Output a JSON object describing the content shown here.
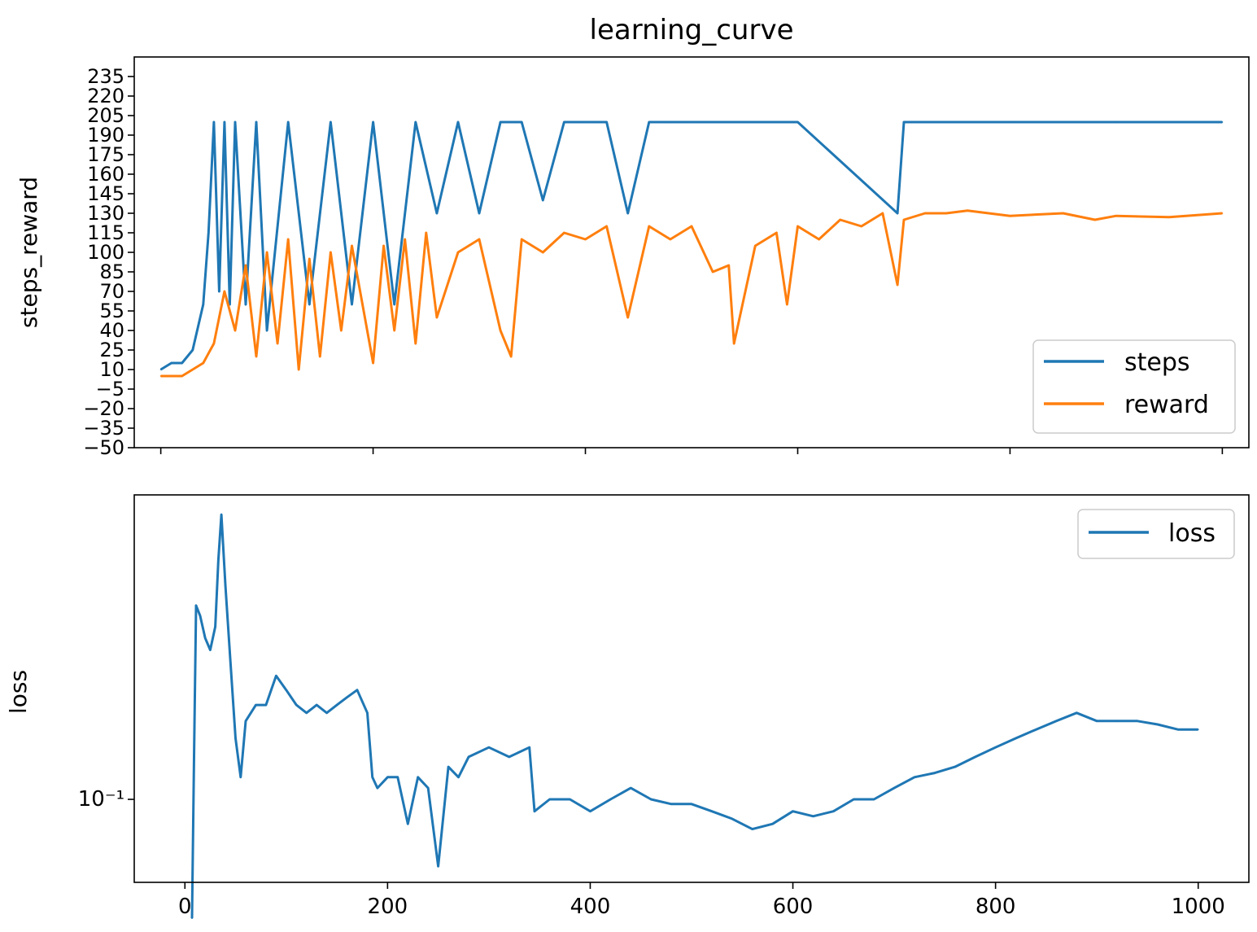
{
  "figure": {
    "title": "learning_curve"
  },
  "chart_data": [
    {
      "type": "line",
      "panel": "top",
      "ylabel": "steps_reward",
      "xlim": [
        -25,
        1025
      ],
      "ylim": [
        -50,
        250
      ],
      "xticks": [
        0,
        200,
        400,
        600,
        800,
        1000
      ],
      "yticks": [
        -50,
        -35,
        -20,
        -5,
        10,
        25,
        40,
        55,
        70,
        85,
        100,
        115,
        130,
        145,
        160,
        175,
        190,
        205,
        220,
        235
      ],
      "ytick_labels": [
        "−50",
        "−35",
        "−20",
        "−5",
        "10",
        "25",
        "40",
        "55",
        "70",
        "85",
        "100",
        "115",
        "130",
        "145",
        "160",
        "175",
        "190",
        "205",
        "220",
        "235"
      ],
      "legend_position": "lower-right",
      "series": [
        {
          "name": "steps",
          "color": "#1f77b4",
          "x": [
            0,
            10,
            20,
            30,
            40,
            45,
            50,
            55,
            60,
            65,
            70,
            80,
            90,
            100,
            120,
            140,
            160,
            180,
            200,
            220,
            240,
            260,
            280,
            300,
            320,
            340,
            360,
            380,
            400,
            420,
            440,
            460,
            480,
            500,
            600,
            694,
            700,
            800,
            900,
            1000
          ],
          "y": [
            10,
            15,
            15,
            25,
            60,
            115,
            200,
            70,
            200,
            60,
            200,
            60,
            200,
            40,
            200,
            60,
            200,
            60,
            200,
            60,
            200,
            130,
            200,
            130,
            200,
            200,
            140,
            200,
            200,
            200,
            130,
            200,
            200,
            200,
            200,
            130,
            200,
            200,
            200,
            200
          ]
        },
        {
          "name": "reward",
          "color": "#ff7f0e",
          "x": [
            0,
            20,
            40,
            50,
            60,
            70,
            80,
            90,
            100,
            110,
            120,
            130,
            140,
            150,
            160,
            170,
            180,
            200,
            210,
            220,
            230,
            240,
            250,
            260,
            280,
            300,
            320,
            330,
            340,
            360,
            380,
            400,
            420,
            440,
            460,
            480,
            500,
            520,
            535,
            540,
            560,
            580,
            590,
            600,
            620,
            640,
            660,
            680,
            694,
            700,
            720,
            740,
            760,
            800,
            850,
            880,
            900,
            950,
            1000
          ],
          "y": [
            5,
            5,
            15,
            30,
            70,
            40,
            90,
            20,
            100,
            30,
            110,
            10,
            95,
            20,
            100,
            40,
            105,
            15,
            105,
            40,
            110,
            30,
            115,
            50,
            100,
            110,
            40,
            20,
            110,
            100,
            115,
            110,
            120,
            50,
            120,
            110,
            120,
            85,
            90,
            30,
            105,
            115,
            60,
            120,
            110,
            125,
            120,
            130,
            75,
            125,
            130,
            130,
            132,
            128,
            130,
            125,
            128,
            127,
            130
          ]
        }
      ]
    },
    {
      "type": "line",
      "panel": "bottom",
      "ylabel": "loss",
      "yscale": "log",
      "xlim": [
        -50,
        1050
      ],
      "ylim": [
        0.07,
        0.37
      ],
      "xticks": [
        0,
        200,
        400,
        600,
        800,
        1000
      ],
      "xtick_labels": [
        "0",
        "200",
        "400",
        "600",
        "800",
        "1000"
      ],
      "yticks": [
        0.1
      ],
      "ytick_labels": [
        "10⁻¹"
      ],
      "legend_position": "upper-right",
      "series": [
        {
          "name": "loss",
          "color": "#1f77b4",
          "x": [
            7,
            9,
            11,
            15,
            20,
            25,
            30,
            33,
            36,
            40,
            45,
            50,
            55,
            60,
            70,
            80,
            90,
            100,
            110,
            120,
            130,
            140,
            150,
            160,
            170,
            180,
            185,
            190,
            200,
            210,
            220,
            230,
            240,
            250,
            260,
            270,
            280,
            300,
            320,
            340,
            345,
            360,
            380,
            400,
            420,
            440,
            460,
            480,
            500,
            520,
            540,
            560,
            580,
            600,
            620,
            640,
            660,
            680,
            700,
            720,
            740,
            760,
            780,
            800,
            820,
            840,
            860,
            880,
            900,
            920,
            940,
            960,
            980,
            1000
          ],
          "y": [
            0.06,
            0.12,
            0.23,
            0.22,
            0.2,
            0.19,
            0.21,
            0.28,
            0.34,
            0.25,
            0.18,
            0.13,
            0.11,
            0.14,
            0.15,
            0.15,
            0.17,
            0.16,
            0.15,
            0.145,
            0.15,
            0.145,
            0.15,
            0.155,
            0.16,
            0.145,
            0.11,
            0.105,
            0.11,
            0.11,
            0.09,
            0.11,
            0.105,
            0.075,
            0.115,
            0.11,
            0.12,
            0.125,
            0.12,
            0.125,
            0.095,
            0.1,
            0.1,
            0.095,
            0.1,
            0.105,
            0.1,
            0.098,
            0.098,
            0.095,
            0.092,
            0.088,
            0.09,
            0.095,
            0.093,
            0.095,
            0.1,
            0.1,
            0.105,
            0.11,
            0.112,
            0.115,
            0.12,
            0.125,
            0.13,
            0.135,
            0.14,
            0.145,
            0.14,
            0.14,
            0.14,
            0.138,
            0.135,
            0.135
          ]
        }
      ]
    }
  ]
}
